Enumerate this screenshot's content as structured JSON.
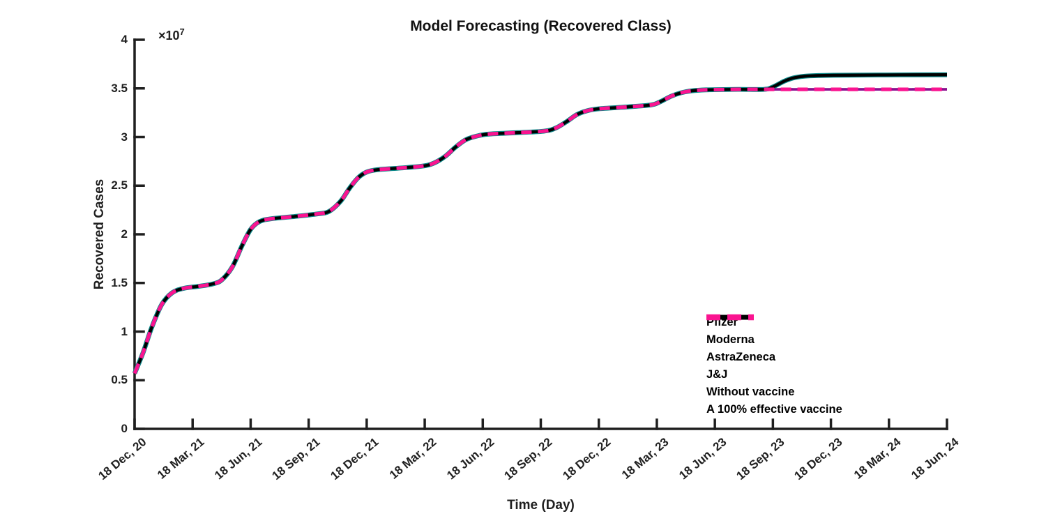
{
  "chart_data": {
    "type": "line",
    "title": "Model Forecasting (Recovered Class)",
    "legend_position": "inside lower right",
    "grid": false,
    "x_axis": {
      "label": "Time (Day)",
      "unit": "quarter-year steps, 0 = first tick, 14 = last tick",
      "tick_labels": [
        "18 Dec, 20",
        "18 Mar, 21",
        "18 Jun, 21",
        "18 Sep, 21",
        "18 Dec, 21",
        "18 Mar, 22",
        "18 Jun, 22",
        "18 Sep, 22",
        "18 Dec, 22",
        "18 Mar, 23",
        "18 Jun, 23",
        "18 Sep, 23",
        "18 Dec, 23",
        "18 Mar, 24",
        "18 Jun, 24"
      ],
      "tick_angle_deg": -40,
      "range": [
        0,
        14
      ]
    },
    "y_axis": {
      "label": "Recovered Cases",
      "ticks": [
        "0",
        "0.5",
        "1",
        "1.5",
        "2",
        "2.5",
        "3",
        "3.5",
        "4"
      ],
      "tick_values": [
        0,
        0.5,
        1,
        1.5,
        2,
        2.5,
        3,
        3.5,
        4
      ],
      "multiplier_base": "×10",
      "multiplier_exp": "7",
      "unit": "values in 1e7 cases",
      "range": [
        0,
        4
      ]
    },
    "common_points": [
      [
        0,
        0.57
      ],
      [
        0.15,
        0.79
      ],
      [
        0.3,
        1.05
      ],
      [
        0.47,
        1.28
      ],
      [
        0.65,
        1.4
      ],
      [
        0.85,
        1.445
      ],
      [
        1.1,
        1.465
      ],
      [
        1.35,
        1.49
      ],
      [
        1.5,
        1.53
      ],
      [
        1.68,
        1.66
      ],
      [
        1.85,
        1.88
      ],
      [
        2.0,
        2.05
      ],
      [
        2.15,
        2.13
      ],
      [
        2.35,
        2.16
      ],
      [
        2.7,
        2.18
      ],
      [
        3.15,
        2.21
      ],
      [
        3.35,
        2.235
      ],
      [
        3.55,
        2.34
      ],
      [
        3.7,
        2.47
      ],
      [
        3.85,
        2.58
      ],
      [
        4.0,
        2.64
      ],
      [
        4.2,
        2.665
      ],
      [
        4.55,
        2.68
      ],
      [
        4.95,
        2.7
      ],
      [
        5.15,
        2.73
      ],
      [
        5.35,
        2.8
      ],
      [
        5.52,
        2.89
      ],
      [
        5.7,
        2.97
      ],
      [
        5.9,
        3.01
      ],
      [
        6.1,
        3.03
      ],
      [
        6.6,
        3.045
      ],
      [
        7.05,
        3.06
      ],
      [
        7.25,
        3.09
      ],
      [
        7.45,
        3.16
      ],
      [
        7.62,
        3.23
      ],
      [
        7.8,
        3.27
      ],
      [
        8.0,
        3.29
      ],
      [
        8.5,
        3.31
      ],
      [
        8.9,
        3.33
      ],
      [
        9.05,
        3.36
      ],
      [
        9.25,
        3.42
      ],
      [
        9.42,
        3.455
      ],
      [
        9.6,
        3.475
      ],
      [
        9.85,
        3.485
      ],
      [
        10.4,
        3.49
      ],
      [
        10.85,
        3.49
      ]
    ],
    "series": [
      {
        "name": "Pfizer",
        "color": "#8B0E8F",
        "style": "solid",
        "branch": "flat",
        "tail_points": [
          [
            11.5,
            3.49
          ],
          [
            12.5,
            3.49
          ],
          [
            14,
            3.49
          ]
        ],
        "final_value_e7": 3.49
      },
      {
        "name": "Moderna",
        "color": "#8C8C8C",
        "style": "dashed",
        "branch": "flat",
        "tail_points": [
          [
            11.5,
            3.49
          ],
          [
            12.5,
            3.49
          ],
          [
            14,
            3.49
          ]
        ],
        "final_value_e7": 3.49
      },
      {
        "name": "AstraZeneca",
        "color": "#8B0A0A",
        "style": "solid",
        "branch": "rise",
        "tail_points": [
          [
            11.0,
            3.515
          ],
          [
            11.2,
            3.575
          ],
          [
            11.35,
            3.607
          ],
          [
            11.55,
            3.625
          ],
          [
            11.8,
            3.632
          ],
          [
            12.3,
            3.636
          ],
          [
            13.2,
            3.639
          ],
          [
            14,
            3.64
          ]
        ],
        "final_value_e7": 3.64
      },
      {
        "name": "J&J",
        "color": "#0A8787",
        "style": "solid",
        "branch": "rise",
        "tail_points": [
          [
            11.0,
            3.515
          ],
          [
            11.2,
            3.575
          ],
          [
            11.35,
            3.607
          ],
          [
            11.55,
            3.625
          ],
          [
            11.8,
            3.632
          ],
          [
            12.3,
            3.636
          ],
          [
            13.2,
            3.639
          ],
          [
            14,
            3.64
          ]
        ],
        "final_value_e7": 3.64
      },
      {
        "name": "Without vaccine",
        "color": "#000000",
        "style": "solid",
        "branch": "rise",
        "tail_points": [
          [
            11.0,
            3.515
          ],
          [
            11.2,
            3.575
          ],
          [
            11.35,
            3.607
          ],
          [
            11.55,
            3.625
          ],
          [
            11.8,
            3.632
          ],
          [
            12.3,
            3.636
          ],
          [
            13.2,
            3.639
          ],
          [
            14,
            3.64
          ]
        ],
        "final_value_e7": 3.64
      },
      {
        "name": "A 100% effective vaccine",
        "color": "#FA1490",
        "style": "dashed",
        "branch": "flat",
        "tail_points": [
          [
            11.5,
            3.49
          ],
          [
            12.5,
            3.49
          ],
          [
            14,
            3.49
          ]
        ],
        "final_value_e7": 3.49
      }
    ]
  }
}
